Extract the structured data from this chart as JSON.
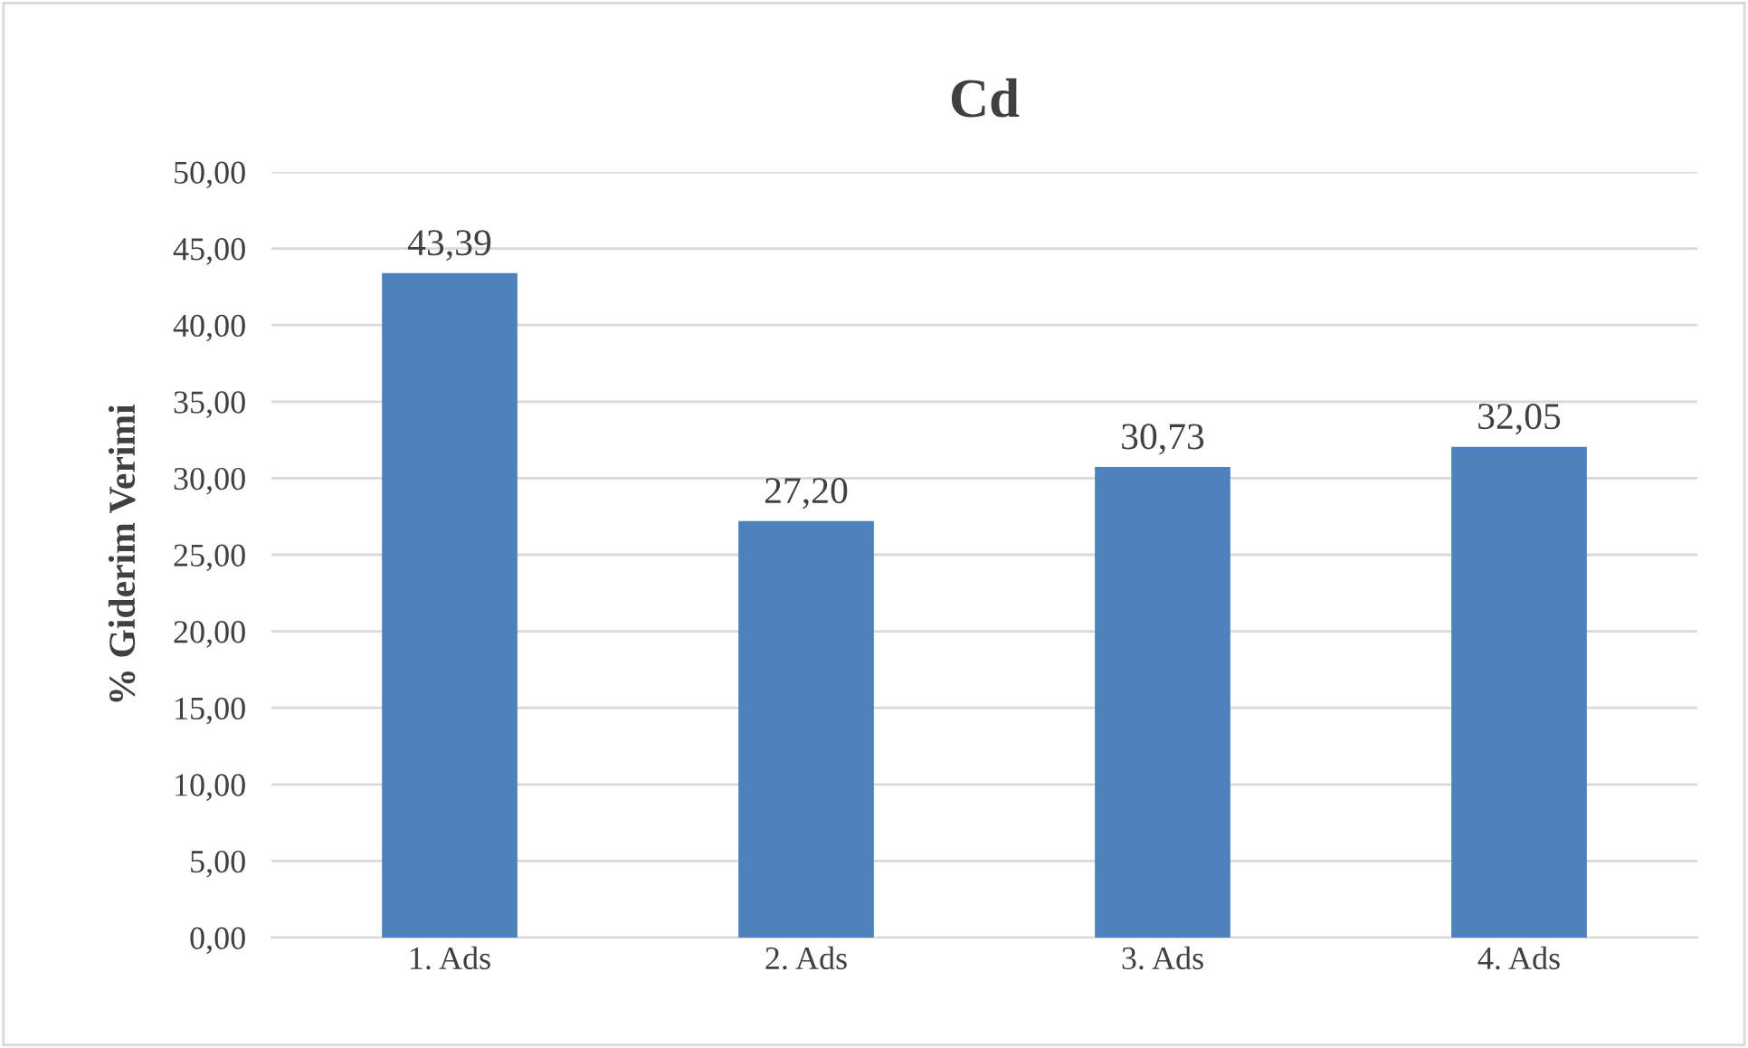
{
  "chart_data": {
    "type": "bar",
    "title": "Cd",
    "ylabel": "% Giderim Verimi",
    "categories": [
      "1. Ads",
      "2. Ads",
      "3. Ads",
      "4. Ads"
    ],
    "values": [
      43.39,
      27.2,
      30.73,
      32.05
    ],
    "value_labels": [
      "43,39",
      "27,20",
      "30,73",
      "32,05"
    ],
    "color": "#4f81bd",
    "ylim": [
      0,
      50
    ],
    "yticks": [
      {
        "value": 0,
        "label": "0,00"
      },
      {
        "value": 5,
        "label": "5,00"
      },
      {
        "value": 10,
        "label": "10,00"
      },
      {
        "value": 15,
        "label": "15,00"
      },
      {
        "value": 20,
        "label": "20,00"
      },
      {
        "value": 25,
        "label": "25,00"
      },
      {
        "value": 30,
        "label": "30,00"
      },
      {
        "value": 35,
        "label": "35,00"
      },
      {
        "value": 40,
        "label": "40,00"
      },
      {
        "value": 45,
        "label": "45,00"
      },
      {
        "value": 50,
        "label": "50,00"
      }
    ],
    "grid": "y"
  }
}
